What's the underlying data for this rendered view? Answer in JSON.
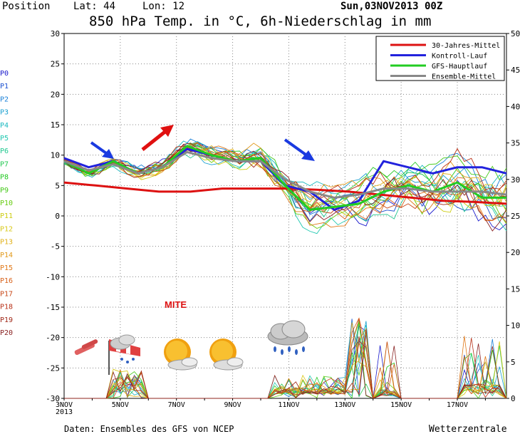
{
  "header": {
    "position_label": "Position",
    "lat_label": "Lat: 44",
    "lon_label": "Lon: 12",
    "date": "Sun,03NOV2013 00Z",
    "title": "850 hPa Temp. in °C, 6h-Niederschlag in mm"
  },
  "footer": {
    "source": "Daten: Ensembles des GFS von NCEP",
    "brand": "Wetterzentrale"
  },
  "annotation": {
    "text": "MITE",
    "color": "#dd1111"
  },
  "members": {
    "labels": [
      "P0",
      "P1",
      "P2",
      "P3",
      "P4",
      "P5",
      "P6",
      "P7",
      "P8",
      "P9",
      "P10",
      "P11",
      "P12",
      "P13",
      "P14",
      "P15",
      "P16",
      "P17",
      "P18",
      "P19",
      "P20"
    ],
    "colors": [
      "#1a1acc",
      "#1a50d0",
      "#1a80d8",
      "#1aa0d0",
      "#1ab8c0",
      "#20c8b0",
      "#22c890",
      "#22c850",
      "#22c822",
      "#44c818",
      "#66cc10",
      "#cccc10",
      "#d8c818",
      "#e0b018",
      "#e09818",
      "#e07818",
      "#d86018",
      "#c84818",
      "#b83018",
      "#a02818",
      "#882020"
    ]
  },
  "legend": [
    {
      "label": "30-Jahres-Mittel",
      "color": "#dd1111"
    },
    {
      "label": "Kontroll-Lauf",
      "color": "#2222dd"
    },
    {
      "label": "GFS-Hauptlauf",
      "color": "#22cc22"
    },
    {
      "label": "Ensemble-Mittel",
      "color": "#888888"
    }
  ],
  "weather_icons": [
    "wind-icon",
    "wind-rain-icon",
    "sun-cloud-icon",
    "sun-cloud-icon",
    "rain-cloud-icon"
  ],
  "chart_data": {
    "type": "line",
    "title": "850 hPa Temp. in °C, 6h-Niederschlag in mm",
    "x_tick_labels": [
      "3NOV\n2013",
      "5NOV",
      "7NOV",
      "9NOV",
      "11NOV",
      "13NOV",
      "15NOV",
      "17NOV"
    ],
    "x_range_days": [
      0,
      15.75
    ],
    "ylim_left": [
      -30,
      30
    ],
    "y_ticks_left": [
      30,
      25,
      20,
      15,
      10,
      5,
      0,
      -5,
      -10,
      -15,
      -20,
      -25,
      -30
    ],
    "ylim_right": [
      0,
      50
    ],
    "y_ticks_right": [
      50,
      45,
      40,
      35,
      30,
      25,
      20,
      15,
      10,
      5,
      0
    ],
    "grid": true,
    "legend_position": "top-right",
    "series": [
      {
        "name": "30-Jahres-Mittel",
        "color": "#dd1111",
        "values": [
          5.5,
          5.0,
          4.5,
          4.0,
          4.0,
          4.5,
          4.5,
          4.5,
          4.3,
          4.0,
          3.5,
          3.0,
          2.5,
          2.3,
          2.0
        ]
      },
      {
        "name": "Kontroll-Lauf",
        "color": "#2222dd",
        "values": [
          9.5,
          8.0,
          9.0,
          7.0,
          8.0,
          11.0,
          10.0,
          9.0,
          9.0,
          5.0,
          4.0,
          1.0,
          2.5,
          9.0,
          8.0,
          7.0,
          8.0,
          8.0,
          7.0
        ]
      },
      {
        "name": "GFS-Hauptlauf",
        "color": "#22cc22",
        "values": [
          9.0,
          7.0,
          9.0,
          7.0,
          8.0,
          11.5,
          10.0,
          9.0,
          9.5,
          5.0,
          1.0,
          1.5,
          2.0,
          4.0,
          5.0,
          4.0,
          5.5,
          3.0,
          3.0
        ]
      },
      {
        "name": "Ensemble-Mittel",
        "color": "#888888",
        "values": [
          9.0,
          7.5,
          8.5,
          7.0,
          8.0,
          10.5,
          9.5,
          9.0,
          9.0,
          6.0,
          4.0,
          3.0,
          3.5,
          4.5,
          4.5,
          4.0,
          4.0,
          4.0,
          3.5
        ]
      }
    ]
  }
}
